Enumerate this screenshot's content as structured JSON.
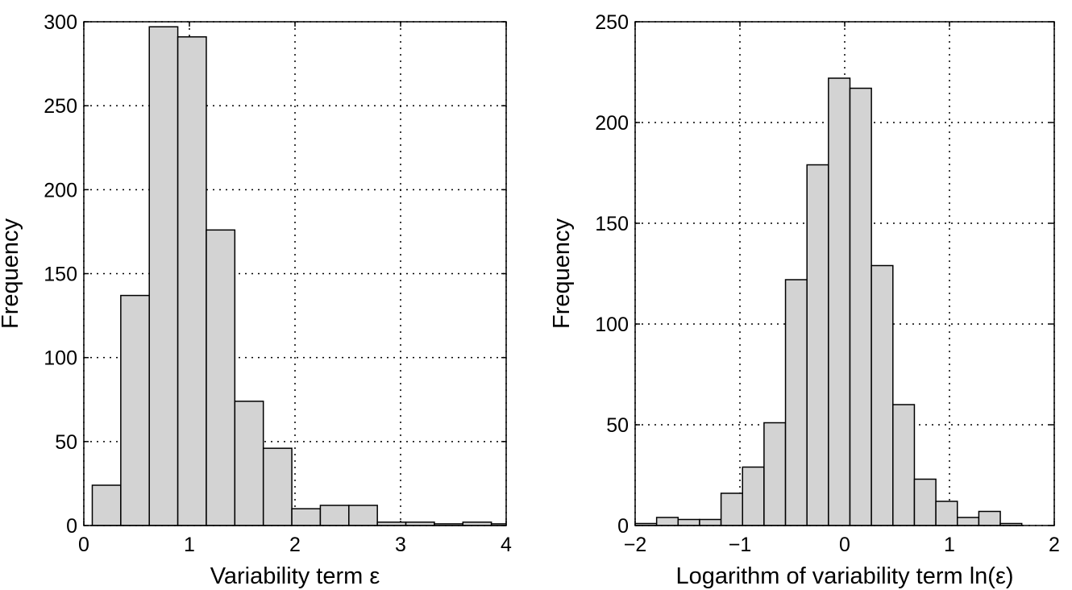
{
  "chart_data": [
    {
      "type": "histogram",
      "xlabel": "Variability term ε",
      "ylabel": "Frequency",
      "bins": [
        0.08,
        0.35,
        0.62,
        0.89,
        1.16,
        1.43,
        1.7,
        1.97,
        2.24,
        2.51,
        2.78,
        3.05,
        3.32,
        3.59,
        3.86,
        4.13
      ],
      "values": [
        24,
        137,
        297,
        291,
        176,
        74,
        46,
        10,
        12,
        12,
        2,
        2,
        1,
        2,
        1
      ],
      "color": "#d3d3d3",
      "xlim": [
        0,
        4
      ],
      "xticks": [
        0,
        1,
        2,
        3,
        4
      ],
      "ylim": [
        0,
        300
      ],
      "yticks": [
        0,
        50,
        100,
        150,
        200,
        250,
        300
      ],
      "grid": true
    },
    {
      "type": "histogram",
      "xlabel": "Logarithm of variability term ln(ε)",
      "ylabel": "Frequency",
      "bins": [
        -2.0,
        -1.795,
        -1.59,
        -1.385,
        -1.18,
        -0.975,
        -0.77,
        -0.565,
        -0.36,
        -0.155,
        0.05,
        0.255,
        0.46,
        0.665,
        0.87,
        1.075,
        1.28,
        1.485,
        1.69
      ],
      "values": [
        1,
        4,
        3,
        3,
        16,
        29,
        51,
        122,
        179,
        222,
        217,
        129,
        60,
        23,
        12,
        4,
        7,
        1
      ],
      "color": "#d3d3d3",
      "xlim": [
        -2,
        2
      ],
      "xticks": [
        {
          "value": -2,
          "label": "−2"
        },
        {
          "value": -1,
          "label": "−1"
        },
        0,
        1,
        2
      ],
      "ylim": [
        0,
        250
      ],
      "yticks": [
        0,
        50,
        100,
        150,
        200,
        250
      ],
      "grid": true
    }
  ]
}
